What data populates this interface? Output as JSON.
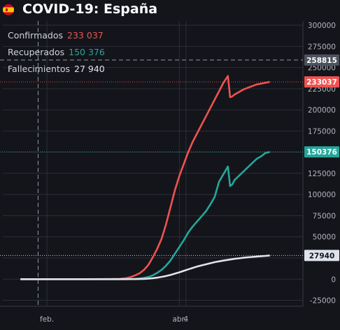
{
  "header": {
    "title": "COVID-19: España",
    "flag_icon": "spain-flag-icon"
  },
  "legend": [
    {
      "label": "Confirmados",
      "value": "233 037",
      "color": "#ef5350"
    },
    {
      "label": "Recuperados",
      "value": "150 376",
      "color": "#26a69a"
    },
    {
      "label": "Fallecimientos",
      "value": "27 940",
      "color": "#e0e3eb"
    }
  ],
  "colors": {
    "background": "#14151b",
    "grid": "#2a2e39",
    "confirmed": "#ef5350",
    "recovered": "#26a69a",
    "deaths": "#e0e3eb",
    "crosshair_label": "#4c525e"
  },
  "chart_data": {
    "type": "line",
    "x_ticks": [
      "feb.",
      "abr.",
      "4"
    ],
    "y_ticks": [
      "300000",
      "275000",
      "250000",
      "225000",
      "200000",
      "175000",
      "150000",
      "125000",
      "100000",
      "75000",
      "50000",
      "25000",
      "0",
      "-25000"
    ],
    "y_tick_values": [
      300000,
      275000,
      250000,
      225000,
      200000,
      175000,
      150000,
      125000,
      100000,
      75000,
      50000,
      25000,
      0,
      -25000
    ],
    "ylim": [
      -32000,
      305000
    ],
    "x": [
      "2020-01-20",
      "2020-02-01",
      "2020-02-20",
      "2020-03-01",
      "2020-03-05",
      "2020-03-08",
      "2020-03-10",
      "2020-03-12",
      "2020-03-14",
      "2020-03-16",
      "2020-03-18",
      "2020-03-20",
      "2020-03-22",
      "2020-03-24",
      "2020-03-26",
      "2020-03-28",
      "2020-03-30",
      "2020-04-01",
      "2020-04-03",
      "2020-04-05",
      "2020-04-07",
      "2020-04-09",
      "2020-04-11",
      "2020-04-13",
      "2020-04-15",
      "2020-04-17",
      "2020-04-19",
      "2020-04-21",
      "2020-04-23",
      "2020-04-24",
      "2020-04-25",
      "2020-04-26",
      "2020-04-28",
      "2020-04-30",
      "2020-05-02",
      "2020-05-04",
      "2020-05-06",
      "2020-05-08",
      "2020-05-10",
      "2020-05-12"
    ],
    "series": [
      {
        "name": "Confirmados",
        "color": "#ef5350",
        "values": [
          0,
          0,
          0,
          200,
          400,
          1200,
          2500,
          4500,
          7000,
          11000,
          17000,
          26000,
          36000,
          48000,
          65000,
          85000,
          105000,
          122000,
          136000,
          150000,
          162000,
          172000,
          182000,
          192000,
          202000,
          212000,
          222000,
          232000,
          240000,
          215000,
          216000,
          218000,
          221000,
          224000,
          226000,
          228000,
          230000,
          231000,
          232000,
          233037
        ]
      },
      {
        "name": "Recuperados",
        "color": "#26a69a",
        "values": [
          0,
          0,
          0,
          0,
          0,
          100,
          200,
          400,
          800,
          1500,
          2500,
          4500,
          7500,
          11000,
          16000,
          22000,
          30000,
          38000,
          46000,
          55000,
          62000,
          68000,
          74000,
          80000,
          88000,
          97000,
          115000,
          124000,
          133000,
          110000,
          112000,
          117000,
          122000,
          127000,
          132000,
          137000,
          142000,
          145000,
          149000,
          150376
        ]
      },
      {
        "name": "Fallecimientos",
        "color": "#e0e3eb",
        "values": [
          0,
          0,
          0,
          0,
          0,
          0,
          20,
          50,
          150,
          300,
          600,
          1100,
          1800,
          2700,
          3700,
          5000,
          6500,
          8100,
          9800,
          11500,
          13200,
          14800,
          16200,
          17500,
          18800,
          20000,
          21000,
          21900,
          22800,
          23200,
          23600,
          24000,
          24600,
          25200,
          25700,
          26200,
          26700,
          27100,
          27500,
          27940
        ]
      }
    ],
    "last_value_labels": [
      {
        "value": "258815",
        "style": "crosshair"
      },
      {
        "value": "233037",
        "series": "Confirmados"
      },
      {
        "value": "150376",
        "series": "Recuperados"
      },
      {
        "value": "27940",
        "series": "Fallecimientos"
      }
    ],
    "crosshair_y": 258815,
    "crosshair_date": "2020-01-28",
    "grid": true
  }
}
